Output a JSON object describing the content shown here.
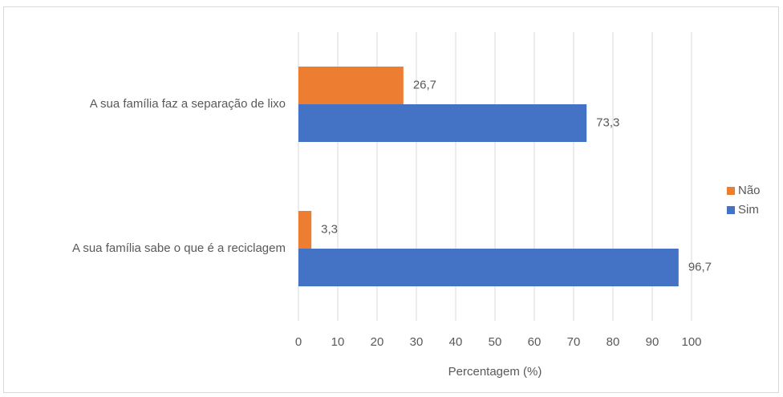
{
  "chart_data": {
    "type": "bar",
    "orientation": "horizontal",
    "categories": [
      "A sua família faz a separação de lixo",
      "A sua família sabe o que é a reciclagem"
    ],
    "series": [
      {
        "name": "Não",
        "color": "#ed7d31",
        "values": [
          26.7,
          3.3
        ],
        "value_labels": [
          "26,7",
          "3,3"
        ]
      },
      {
        "name": "Sim",
        "color": "#4472c4",
        "values": [
          73.3,
          96.7
        ],
        "value_labels": [
          "73,3",
          "96,7"
        ]
      }
    ],
    "xlim": [
      0,
      100
    ],
    "xticks": [
      0,
      10,
      20,
      30,
      40,
      50,
      60,
      70,
      80,
      90,
      100
    ],
    "xlabel": "Percentagem (%)",
    "grid": true,
    "legend": "right"
  }
}
